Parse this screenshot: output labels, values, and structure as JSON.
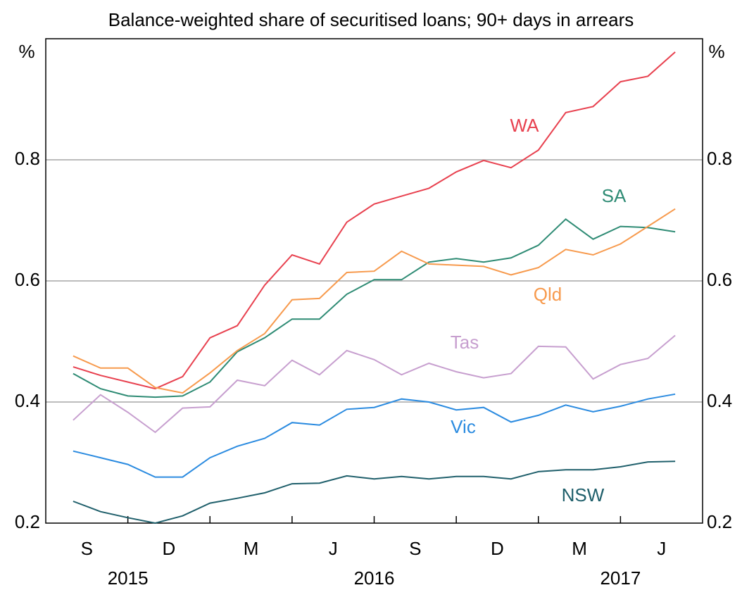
{
  "chart_data": {
    "type": "line",
    "title": "Balance-weighted share of securitised loans; 90+ days in arrears",
    "y_unit_left": "%",
    "y_unit_right": "%",
    "x_tick_labels": [
      "S",
      "D",
      "M",
      "J",
      "S",
      "D",
      "M",
      "J"
    ],
    "x_year_labels": [
      "2015",
      "2016",
      "2017"
    ],
    "ylim": [
      0.2,
      1.0
    ],
    "yticks": [
      0.2,
      0.4,
      0.6,
      0.8
    ],
    "grid": true,
    "series": [
      {
        "name": "WA",
        "color": "#e8414f",
        "values": [
          0.458,
          0.444,
          0.433,
          0.422,
          0.442,
          0.506,
          0.526,
          0.593,
          0.643,
          0.628,
          0.697,
          0.727,
          0.74,
          0.753,
          0.78,
          0.799,
          0.787,
          0.816,
          0.878,
          0.888,
          0.929,
          0.938,
          0.978
        ]
      },
      {
        "name": "SA",
        "color": "#2e8b74",
        "values": [
          0.447,
          0.422,
          0.41,
          0.408,
          0.41,
          0.433,
          0.483,
          0.506,
          0.537,
          0.537,
          0.578,
          0.602,
          0.602,
          0.631,
          0.637,
          0.631,
          0.638,
          0.659,
          0.702,
          0.669,
          0.69,
          0.688,
          0.681
        ]
      },
      {
        "name": "Qld",
        "color": "#f79a4d",
        "values": [
          0.476,
          0.456,
          0.456,
          0.424,
          0.415,
          0.448,
          0.485,
          0.513,
          0.569,
          0.571,
          0.614,
          0.616,
          0.649,
          0.628,
          0.626,
          0.624,
          0.61,
          0.622,
          0.652,
          0.643,
          0.661,
          0.69,
          0.719
        ]
      },
      {
        "name": "Tas",
        "color": "#c79fcf",
        "values": [
          0.37,
          0.412,
          0.383,
          0.35,
          0.39,
          0.392,
          0.436,
          0.427,
          0.469,
          0.445,
          0.485,
          0.47,
          0.445,
          0.464,
          0.45,
          0.44,
          0.447,
          0.492,
          0.491,
          0.438,
          0.462,
          0.472,
          0.51
        ]
      },
      {
        "name": "Vic",
        "color": "#2b8be0",
        "values": [
          0.319,
          0.308,
          0.297,
          0.276,
          0.276,
          0.308,
          0.327,
          0.34,
          0.366,
          0.362,
          0.388,
          0.391,
          0.405,
          0.4,
          0.387,
          0.391,
          0.367,
          0.378,
          0.395,
          0.384,
          0.393,
          0.405,
          0.413
        ]
      },
      {
        "name": "NSW",
        "color": "#1f5f6b",
        "values": [
          0.236,
          0.219,
          0.209,
          0.2,
          0.212,
          0.233,
          0.241,
          0.25,
          0.265,
          0.266,
          0.278,
          0.273,
          0.277,
          0.273,
          0.277,
          0.277,
          0.273,
          0.285,
          0.288,
          0.288,
          0.293,
          0.301,
          0.302
        ]
      }
    ]
  }
}
